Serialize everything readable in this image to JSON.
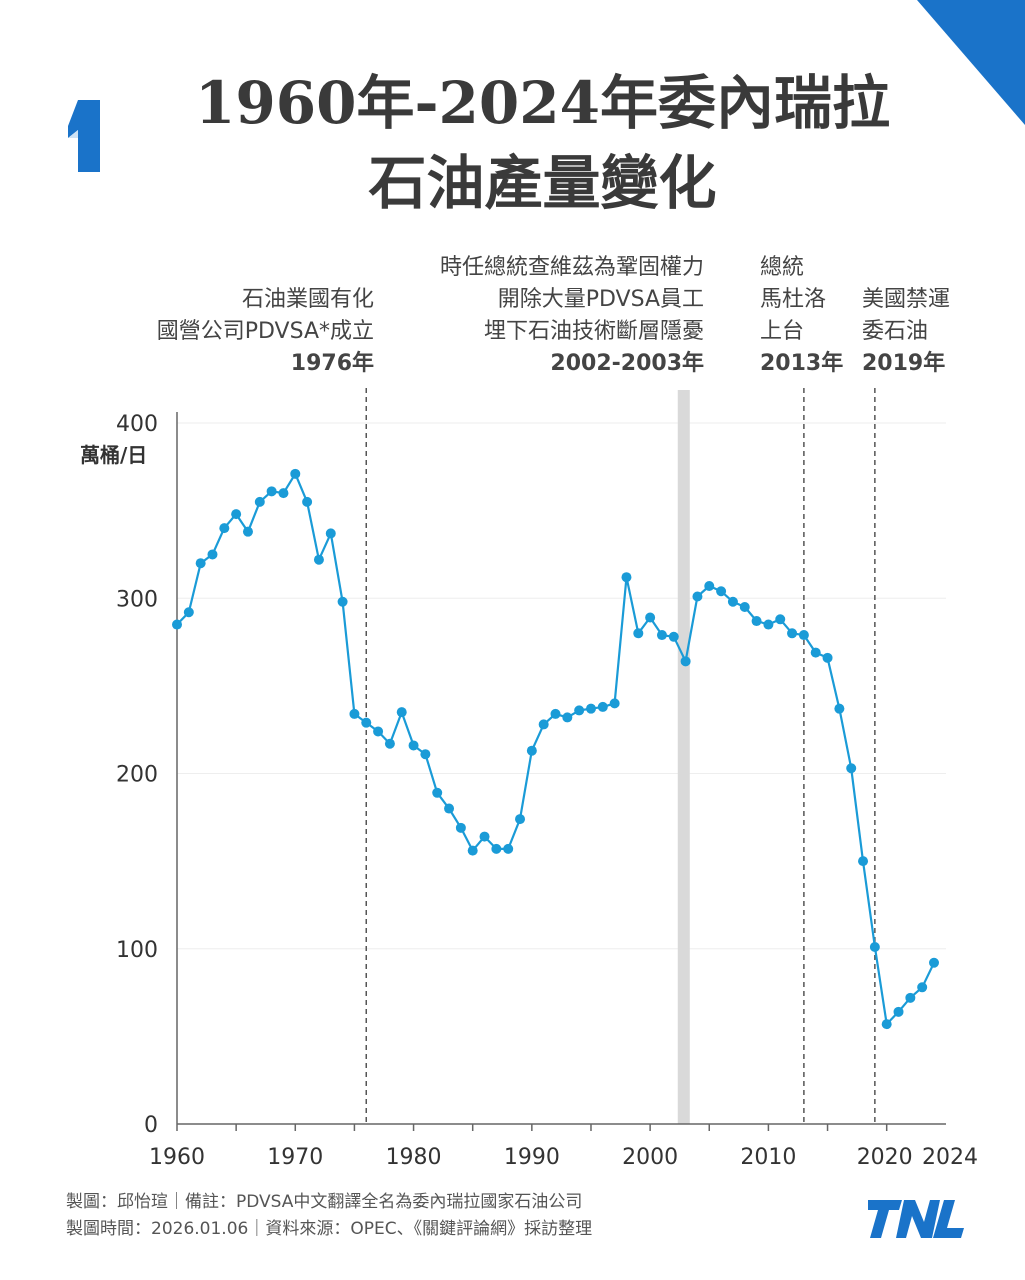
{
  "header": {
    "title_line1": "1960年-2024年委內瑞拉",
    "title_line2": "石油產量變化",
    "page_number": "1"
  },
  "annotations": [
    {
      "lines": [
        "石油業國有化",
        "國營公司PDVSA*成立"
      ],
      "year_label": "1976年",
      "x_start": 1976,
      "x_end": 1976
    },
    {
      "lines": [
        "時任總統查維茲為鞏固權力",
        "開除大量PDVSA員工",
        "埋下石油技術斷層隱憂"
      ],
      "year_label": "2002-2003年",
      "x_start": 2002,
      "x_end": 2003
    },
    {
      "lines": [
        "總統",
        "馬杜洛",
        "上台"
      ],
      "year_label": "2013年",
      "x_start": 2013,
      "x_end": 2013
    },
    {
      "lines": [
        "美國禁運",
        "委石油"
      ],
      "year_label": "2019年",
      "x_start": 2019,
      "x_end": 2019
    }
  ],
  "chart_data": {
    "type": "line",
    "title": "1960年-2024年委內瑞拉石油產量變化",
    "ylabel": "萬桶/日",
    "xlabel": "",
    "xlim": [
      1960,
      2024
    ],
    "ylim": [
      0,
      400
    ],
    "x_ticks": [
      1960,
      1970,
      1980,
      1990,
      2000,
      2010,
      2020,
      2024
    ],
    "y_ticks": [
      0,
      100,
      200,
      300,
      400
    ],
    "grid": "horizontal",
    "series_color": "#1a9bd7",
    "x": [
      1960,
      1961,
      1962,
      1963,
      1964,
      1965,
      1966,
      1967,
      1968,
      1969,
      1970,
      1971,
      1972,
      1973,
      1974,
      1975,
      1976,
      1977,
      1978,
      1979,
      1980,
      1981,
      1982,
      1983,
      1984,
      1985,
      1986,
      1987,
      1988,
      1989,
      1990,
      1991,
      1992,
      1993,
      1994,
      1995,
      1996,
      1997,
      1998,
      1999,
      2000,
      2001,
      2002,
      2003,
      2004,
      2005,
      2006,
      2007,
      2008,
      2009,
      2010,
      2011,
      2012,
      2013,
      2014,
      2015,
      2016,
      2017,
      2018,
      2019,
      2020,
      2021,
      2022,
      2023,
      2024
    ],
    "series": [
      {
        "values": [
          285,
          292,
          320,
          325,
          340,
          348,
          338,
          355,
          361,
          360,
          371,
          355,
          322,
          337,
          298,
          234,
          229,
          224,
          217,
          235,
          216,
          211,
          189,
          180,
          169,
          156,
          164,
          157,
          157,
          174,
          213,
          228,
          234,
          232,
          236,
          237,
          238,
          240,
          312,
          280,
          289,
          279,
          278,
          264,
          301,
          307,
          304,
          298,
          295,
          287,
          285,
          288,
          280,
          279,
          269,
          266,
          237,
          203,
          150,
          101,
          57,
          64,
          72,
          78,
          92
        ]
      }
    ]
  },
  "footer": {
    "line1": "製圖：邱怡瑄｜備註：PDVSA中文翻譯全名為委內瑞拉國家石油公司",
    "line2": "製圖時間：2026.01.06｜資料來源：OPEC、《關鍵評論網》採訪整理",
    "logo_text": "TNL"
  },
  "colors": {
    "accent": "#1a73c9",
    "line": "#1a9bd7",
    "shade": "#d9d9d9"
  }
}
